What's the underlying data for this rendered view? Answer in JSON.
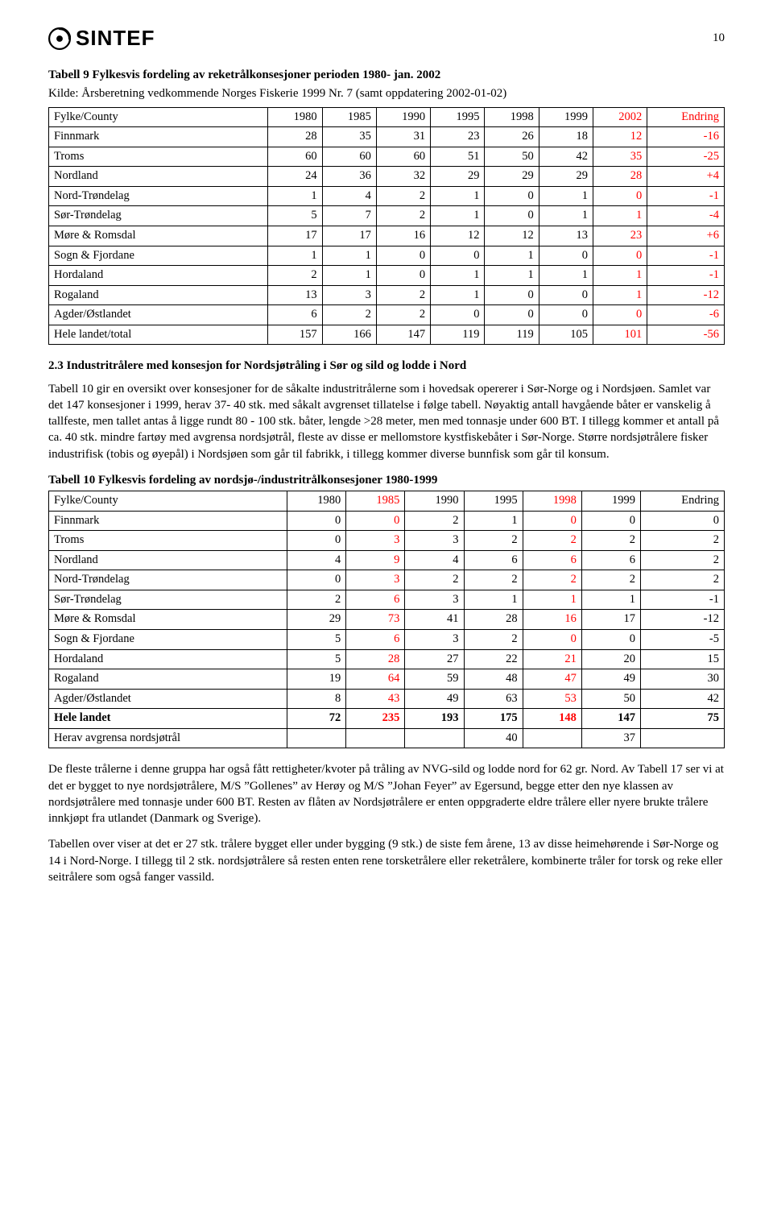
{
  "page": {
    "brand": "SINTEF",
    "number": "10"
  },
  "colors": {
    "text": "#000000",
    "highlight": "#ff0000",
    "background": "#ffffff",
    "border": "#000000"
  },
  "fonts": {
    "body_family": "Times New Roman",
    "body_size_pt": 12,
    "brand_family": "Arial",
    "brand_weight": 900,
    "brand_size_pt": 20
  },
  "table1": {
    "type": "table",
    "title": "Tabell 9 Fylkesvis fordeling av reketrålkonsesjoner perioden 1980- jan. 2002",
    "subtitle": "Kilde: Årsberetning vedkommende Norges Fiskerie 1999 Nr. 7 (samt oppdatering 2002-01-02)",
    "columns": [
      "Fylke/County",
      "1980",
      "1985",
      "1990",
      "1995",
      "1998",
      "1999",
      "2002",
      "Endring"
    ],
    "endring_col_color": "#ff0000",
    "col2002_color": "#ff0000",
    "boldFirstColLastRow": true,
    "rows": [
      {
        "label": "Finnmark",
        "c": [
          "28",
          "35",
          "31",
          "23",
          "26",
          "18",
          "12",
          "-16"
        ]
      },
      {
        "label": "Troms",
        "c": [
          "60",
          "60",
          "60",
          "51",
          "50",
          "42",
          "35",
          "-25"
        ]
      },
      {
        "label": "Nordland",
        "c": [
          "24",
          "36",
          "32",
          "29",
          "29",
          "29",
          "28",
          "+4"
        ]
      },
      {
        "label": "Nord-Trøndelag",
        "c": [
          "1",
          "4",
          "2",
          "1",
          "0",
          "1",
          "0",
          "-1"
        ]
      },
      {
        "label": "Sør-Trøndelag",
        "c": [
          "5",
          "7",
          "2",
          "1",
          "0",
          "1",
          "1",
          "-4"
        ]
      },
      {
        "label": "Møre & Romsdal",
        "c": [
          "17",
          "17",
          "16",
          "12",
          "12",
          "13",
          "23",
          "+6"
        ]
      },
      {
        "label": "Sogn & Fjordane",
        "c": [
          "1",
          "1",
          "0",
          "0",
          "1",
          "0",
          "0",
          "-1"
        ]
      },
      {
        "label": "Hordaland",
        "c": [
          "2",
          "1",
          "0",
          "1",
          "1",
          "1",
          "1",
          "-1"
        ]
      },
      {
        "label": "Rogaland",
        "c": [
          "13",
          "3",
          "2",
          "1",
          "0",
          "0",
          "1",
          "-12"
        ]
      },
      {
        "label": "Agder/Østlandet",
        "c": [
          "6",
          "2",
          "2",
          "0",
          "0",
          "0",
          "0",
          "-6"
        ]
      },
      {
        "label": "Hele landet/total",
        "c": [
          "157",
          "166",
          "147",
          "119",
          "119",
          "105",
          "101",
          "-56"
        ]
      }
    ]
  },
  "section": {
    "heading": "2.3 Industritrålere med konsesjon for Nordsjøtråling i Sør og sild og lodde i Nord",
    "para1": "Tabell 10 gir en oversikt over konsesjoner for de såkalte industritrålerne som i hovedsak opererer i Sør-Norge og i Nordsjøen. Samlet var det 147 konsesjoner i 1999, herav 37- 40 stk. med såkalt avgrenset tillatelse i følge tabell. Nøyaktig antall havgående båter er vanskelig å tallfeste, men tallet antas å ligge rundt 80 - 100 stk. båter, lengde >28 meter, men med tonnasje under 600 BT. I tillegg kommer et antall på ca. 40 stk. mindre fartøy med avgrensa nordsjøtrål, fleste av disse er mellomstore kystfiskebåter i Sør-Norge. Større nordsjøtrålere fisker industrifisk (tobis og øyepål) i Nordsjøen som går til fabrikk, i tillegg kommer diverse bunnfisk som går til konsum."
  },
  "table2": {
    "type": "table",
    "title": "Tabell 10 Fylkesvis fordeling av nordsjø-/industritrålkonsesjoner 1980-1999",
    "columns": [
      "Fylke/County",
      "1980",
      "1985",
      "1990",
      "1995",
      "1998",
      "1999",
      "Endring"
    ],
    "highlight_cols": [
      "1985",
      "1998"
    ],
    "highlight_color": "#ff0000",
    "rows": [
      {
        "label": "Finnmark",
        "c": [
          "0",
          "0",
          "2",
          "1",
          "0",
          "0",
          "0"
        ]
      },
      {
        "label": "Troms",
        "c": [
          "0",
          "3",
          "3",
          "2",
          "2",
          "2",
          "2"
        ]
      },
      {
        "label": "Nordland",
        "c": [
          "4",
          "9",
          "4",
          "6",
          "6",
          "6",
          "2"
        ]
      },
      {
        "label": "Nord-Trøndelag",
        "c": [
          "0",
          "3",
          "2",
          "2",
          "2",
          "2",
          "2"
        ]
      },
      {
        "label": "Sør-Trøndelag",
        "c": [
          "2",
          "6",
          "3",
          "1",
          "1",
          "1",
          "-1"
        ]
      },
      {
        "label": "Møre & Romsdal",
        "c": [
          "29",
          "73",
          "41",
          "28",
          "16",
          "17",
          "-12"
        ]
      },
      {
        "label": "Sogn & Fjordane",
        "c": [
          "5",
          "6",
          "3",
          "2",
          "0",
          "0",
          "-5"
        ]
      },
      {
        "label": "Hordaland",
        "c": [
          "5",
          "28",
          "27",
          "22",
          "21",
          "20",
          "15"
        ]
      },
      {
        "label": "Rogaland",
        "c": [
          "19",
          "64",
          "59",
          "48",
          "47",
          "49",
          "30"
        ]
      },
      {
        "label": "Agder/Østlandet",
        "c": [
          "8",
          "43",
          "49",
          "63",
          "53",
          "50",
          "42"
        ]
      },
      {
        "label": "Hele landet",
        "c": [
          "72",
          "235",
          "193",
          "175",
          "148",
          "147",
          "75"
        ],
        "bold": true
      },
      {
        "label": "Herav avgrensa nordsjøtrål",
        "c": [
          "",
          "",
          "",
          "40",
          "",
          "37",
          ""
        ]
      }
    ]
  },
  "footer": {
    "para1": "De fleste trålerne i denne gruppa har også fått rettigheter/kvoter på tråling av NVG-sild og lodde nord for 62 gr. Nord. Av Tabell 17 ser vi at det er bygget to nye nordsjøtrålere,  M/S ”Gollenes” av Herøy og M/S ”Johan Feyer” av Egersund, begge etter den nye klassen av nordsjøtrålere med tonnasje under 600 BT. Resten av flåten av Nordsjøtrålere er enten oppgraderte eldre trålere eller nyere brukte trålere innkjøpt fra utlandet (Danmark og Sverige).",
    "para2": "Tabellen over viser at det er 27 stk. trålere bygget eller under bygging (9 stk.) de siste fem årene, 13 av disse heimehørende i Sør-Norge og 14 i Nord-Norge. I tillegg til 2 stk. nordsjøtrålere så resten enten rene torsketrålere eller reketrålere, kombinerte tråler for torsk og reke eller seitrålere som også fanger vassild."
  }
}
